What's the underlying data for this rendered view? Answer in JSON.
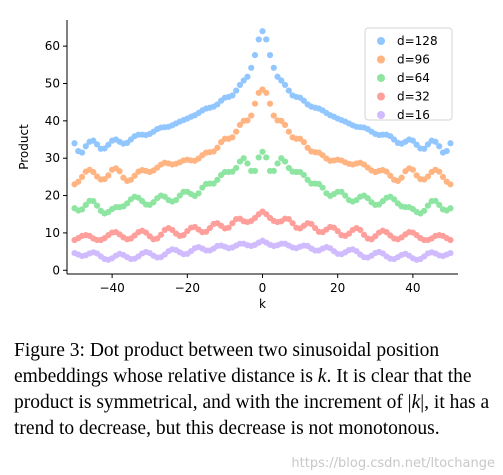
{
  "chart_data": {
    "type": "scatter",
    "title": "",
    "xlabel": "k",
    "ylabel": "Product",
    "xlim": [
      -52,
      52
    ],
    "ylim": [
      -1,
      67
    ],
    "x_ticks": [
      -40,
      -20,
      0,
      20,
      40
    ],
    "x_tick_labels": [
      "−40",
      "−20",
      "0",
      "20",
      "40"
    ],
    "y_ticks": [
      0,
      10,
      20,
      30,
      40,
      50,
      60
    ],
    "y_tick_labels": [
      "0",
      "10",
      "20",
      "30",
      "40",
      "50",
      "60"
    ],
    "grid": false,
    "legend_position": "top-right",
    "x": [
      -50,
      -49,
      -48,
      -47,
      -46,
      -45,
      -44,
      -43,
      -42,
      -41,
      -40,
      -39,
      -38,
      -37,
      -36,
      -35,
      -34,
      -33,
      -32,
      -31,
      -30,
      -29,
      -28,
      -27,
      -26,
      -25,
      -24,
      -23,
      -22,
      -21,
      -20,
      -19,
      -18,
      -17,
      -16,
      -15,
      -14,
      -13,
      -12,
      -11,
      -10,
      -9,
      -8,
      -7,
      -6,
      -5,
      -4,
      -3,
      -2,
      -1,
      0,
      1,
      2,
      3,
      4,
      5,
      6,
      7,
      8,
      9,
      10,
      11,
      12,
      13,
      14,
      15,
      16,
      17,
      18,
      19,
      20,
      21,
      22,
      23,
      24,
      25,
      26,
      27,
      28,
      29,
      30,
      31,
      32,
      33,
      34,
      35,
      36,
      37,
      38,
      39,
      40,
      41,
      42,
      43,
      44,
      45,
      46,
      47,
      48,
      49,
      50
    ],
    "series": [
      {
        "name": "d=128",
        "color": "#92c6ff",
        "values": [
          34,
          31.9,
          31.5,
          33.2,
          34.4,
          34.7,
          33.7,
          32.5,
          32.6,
          33.6,
          34.7,
          35,
          34.4,
          33.9,
          34.1,
          35,
          35.9,
          36.3,
          36.3,
          36.2,
          36.5,
          37.1,
          37.8,
          38.2,
          38.3,
          38.4,
          38.8,
          39.3,
          39.8,
          40.2,
          40.6,
          41.1,
          41.5,
          42.1,
          42.8,
          43.3,
          43.5,
          43.8,
          44.4,
          45.4,
          46.2,
          46.4,
          46.8,
          48.1,
          49.6,
          50.8,
          51.8,
          54.2,
          57.6,
          61.8,
          64,
          61.8,
          57.6,
          54.2,
          51.8,
          50.8,
          49.6,
          48.1,
          46.8,
          46.4,
          46.2,
          45.4,
          44.4,
          43.8,
          43.5,
          43.3,
          42.8,
          42.1,
          41.5,
          41.1,
          40.6,
          40.2,
          39.8,
          39.3,
          38.8,
          38.4,
          38.3,
          38.2,
          37.8,
          37.1,
          36.5,
          36.2,
          36.3,
          36.3,
          35.9,
          35,
          34.1,
          33.9,
          34.4,
          35,
          34.7,
          33.6,
          32.6,
          32.5,
          33.7,
          34.7,
          34.4,
          33.2,
          31.5,
          31.9,
          34
        ]
      },
      {
        "name": "d=96",
        "color": "#ffb482",
        "values": [
          23,
          23.7,
          25,
          26.4,
          26.9,
          26.3,
          25.1,
          24.3,
          24.4,
          25.4,
          26.9,
          27.3,
          26.5,
          24.8,
          23.9,
          24.2,
          25.3,
          26.4,
          26.8,
          26.6,
          26.3,
          26.7,
          27.5,
          28.3,
          28.8,
          28.6,
          28.3,
          28.5,
          28.9,
          29.4,
          29.6,
          29.4,
          29.3,
          29.9,
          30.8,
          31.5,
          31.6,
          31.8,
          32.8,
          34.3,
          35.2,
          35.2,
          35.6,
          37.1,
          38.9,
          40,
          40.1,
          41.4,
          44.6,
          47.5,
          48.4,
          47.5,
          44.6,
          41.4,
          40.1,
          40,
          38.9,
          37.1,
          35.6,
          35.2,
          35.2,
          34.3,
          32.8,
          31.8,
          31.6,
          31.5,
          30.8,
          29.9,
          29.3,
          29.4,
          29.6,
          29.4,
          28.9,
          28.5,
          28.3,
          28.6,
          28.8,
          28.3,
          27.5,
          26.7,
          26.3,
          26.6,
          26.8,
          26.4,
          25.3,
          24.2,
          23.9,
          24.8,
          26.5,
          27.3,
          26.9,
          25.4,
          24.4,
          24.3,
          25.1,
          26.3,
          26.9,
          26.4,
          25,
          23.7,
          23
        ]
      },
      {
        "name": "d=64",
        "color": "#8de5a1",
        "values": [
          16.6,
          16,
          16.3,
          17.5,
          18.6,
          18.5,
          17.3,
          15.9,
          15.2,
          15.6,
          16.4,
          16.9,
          16.9,
          17.1,
          17.9,
          19,
          19.7,
          19.4,
          18.5,
          17.6,
          17.5,
          18.2,
          19.3,
          20,
          19.7,
          18.8,
          18.4,
          18.8,
          20,
          21,
          21,
          20.4,
          19.9,
          20.6,
          22.1,
          23.1,
          23.2,
          23.2,
          24.2,
          25.5,
          26.3,
          26.3,
          26.4,
          27.4,
          29.1,
          30,
          28.6,
          26.6,
          26.6,
          30.2,
          31.7,
          30.2,
          26.6,
          26.6,
          28.6,
          30,
          29.1,
          27.4,
          26.4,
          26.3,
          26.3,
          25.5,
          24.2,
          23.2,
          23.2,
          23.1,
          22.1,
          20.6,
          19.9,
          20.4,
          21,
          21,
          20,
          18.8,
          18.4,
          18.8,
          19.7,
          20,
          19.3,
          18.2,
          17.5,
          17.6,
          18.5,
          19.4,
          19.7,
          19,
          17.9,
          17.1,
          16.9,
          16.9,
          16.4,
          15.6,
          15.2,
          15.9,
          17.3,
          18.5,
          18.6,
          17.5,
          16.3,
          16,
          16.6
        ]
      },
      {
        "name": "d=32",
        "color": "#ff9f9b",
        "values": [
          8.1,
          8.6,
          9.2,
          9.4,
          9.2,
          8.5,
          8.1,
          8.1,
          8.6,
          9.4,
          10.1,
          10.2,
          9.6,
          8.8,
          8.3,
          8.5,
          9.3,
          10.2,
          10.6,
          10.1,
          9.1,
          8.3,
          8.5,
          9.5,
          10.8,
          11.3,
          10.8,
          9.8,
          9.2,
          9.4,
          10.5,
          11.4,
          11.6,
          10.9,
          10.2,
          10.3,
          11.3,
          12.4,
          12.6,
          11.9,
          11.2,
          11.4,
          12.6,
          13.7,
          13.8,
          13.1,
          12.9,
          13.2,
          14,
          15,
          15.7,
          15,
          14,
          13.2,
          12.9,
          13.1,
          13.8,
          13.7,
          12.6,
          11.4,
          11.2,
          11.9,
          12.6,
          12.4,
          11.3,
          10.3,
          10.2,
          10.9,
          11.6,
          11.4,
          10.5,
          9.4,
          9.2,
          9.8,
          10.8,
          11.3,
          10.8,
          9.5,
          8.5,
          8.3,
          9.1,
          10.1,
          10.6,
          10.2,
          9.3,
          8.5,
          8.3,
          8.8,
          9.6,
          10.2,
          10.1,
          9.4,
          8.6,
          8.1,
          8.1,
          8.5,
          9.2,
          9.4,
          9.2,
          8.6,
          8.1
        ]
      },
      {
        "name": "d=16",
        "color": "#d0bbff",
        "values": [
          4.6,
          4.2,
          3.8,
          4,
          4.5,
          4.8,
          4.5,
          3.7,
          3,
          2.8,
          3.2,
          3.9,
          4.4,
          4.1,
          3.5,
          3,
          3.1,
          3.7,
          4.5,
          4.9,
          4.6,
          3.9,
          3.4,
          3.5,
          4.2,
          5.1,
          5.6,
          5.4,
          4.8,
          4.3,
          4.4,
          5.1,
          5.9,
          6.2,
          5.8,
          5.3,
          5.3,
          5.8,
          6.5,
          6.6,
          6.3,
          5.9,
          6.1,
          6.6,
          7.1,
          7.1,
          6.7,
          6.5,
          6.8,
          7.4,
          7.9,
          7.4,
          6.8,
          6.5,
          6.7,
          7.1,
          7.1,
          6.6,
          6.1,
          5.9,
          6.3,
          6.6,
          6.5,
          5.8,
          5.3,
          5.3,
          5.8,
          6.2,
          5.9,
          5.1,
          4.4,
          4.3,
          4.8,
          5.4,
          5.6,
          5.1,
          4.2,
          3.5,
          3.4,
          3.9,
          4.6,
          4.9,
          4.5,
          3.7,
          3.1,
          3,
          3.5,
          4.1,
          4.4,
          3.9,
          3.2,
          2.8,
          3,
          3.7,
          4.5,
          4.8,
          4.5,
          4,
          3.8,
          4.2,
          4.6
        ]
      }
    ]
  },
  "caption": {
    "part1": "Figure 3: Dot product between two sinusoidal position embeddings whose relative distance is ",
    "k": "k",
    "part2": ". It is clear that the product is symmetrical, and with the increment of |",
    "k2": "k",
    "part3": "|, it has a trend to decrease, but this decrease is not monotonous."
  },
  "watermark": "https://blog.csdn.net/ltochange"
}
